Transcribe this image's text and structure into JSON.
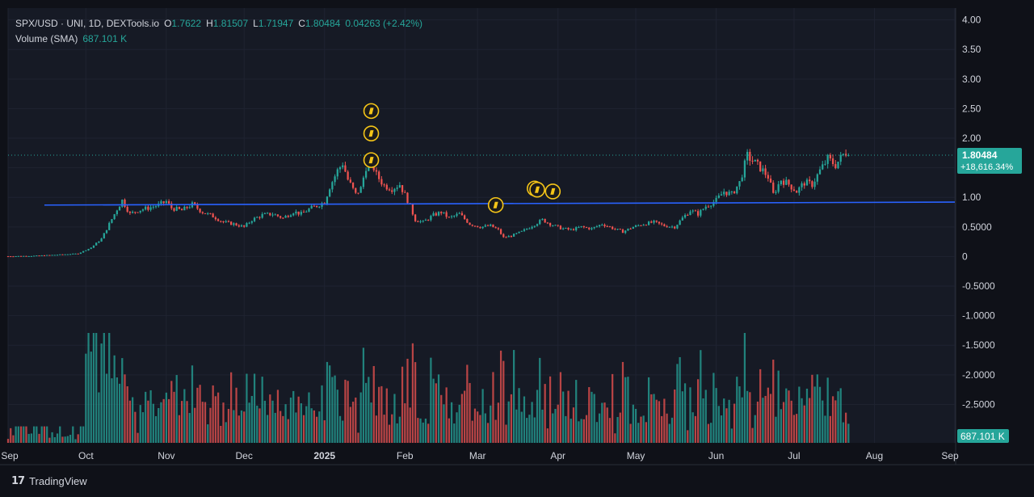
{
  "legend": {
    "symbol": "SPX/USD · UNI, 1D, DEXTools.io",
    "open_label": "O",
    "open": "1.7622",
    "high_label": "H",
    "high": "1.81507",
    "low_label": "L",
    "low": "1.71947",
    "close_label": "C",
    "close": "1.80484",
    "change": "0.04263 (+2.42%)",
    "volume_label": "Volume (SMA)",
    "volume_value": "687.101 K"
  },
  "price_badge": {
    "price": "1.80484",
    "change": "+18,616.34%"
  },
  "volume_badge": "687.101 K",
  "brand": {
    "mark": "17",
    "name": "TradingView"
  },
  "colors": {
    "up": "#26a69a",
    "down": "#ef5350",
    "level": "#2962ff",
    "badge": "#26a69a",
    "marker": "#f5c518",
    "bg": "#161a25",
    "grid": "#1f2331",
    "text": "#d1d4dc"
  },
  "chart_data": {
    "type": "candlestick",
    "y_ticks": [
      "4.00",
      "3.50",
      "3.00",
      "2.50",
      "2.00",
      "1.50",
      "1.00",
      "0.5000",
      "0",
      "-0.5000",
      "-1.0000",
      "-1.5000",
      "-2.0000",
      "-2.5000"
    ],
    "y_tick_values": [
      4.0,
      3.5,
      3.0,
      2.5,
      2.0,
      1.5,
      1.0,
      0.5,
      0,
      -0.5,
      -1.0,
      -1.5,
      -2.0,
      -2.5
    ],
    "ylim": [
      -3.15,
      4.2
    ],
    "x_ticks": [
      "Sep",
      "Oct",
      "Nov",
      "Dec",
      "2025",
      "Feb",
      "Mar",
      "Apr",
      "May",
      "Jun",
      "Jul",
      "Aug",
      "Sep"
    ],
    "x_tick_dates": [
      "2024-09-01",
      "2024-10-01",
      "2024-11-01",
      "2024-12-01",
      "2025-01-01",
      "2025-02-01",
      "2025-03-01",
      "2025-04-01",
      "2025-05-01",
      "2025-06-01",
      "2025-07-01",
      "2025-08-01",
      "2025-09-01"
    ],
    "xlim": [
      "2024-09-01",
      "2025-09-01"
    ],
    "horizontal_line": {
      "from": "2024-09-15",
      "price_start": 0.87,
      "price_end": 0.92
    },
    "series_close": [
      [
        "2024-09-01",
        0.005
      ],
      [
        "2024-09-10",
        0.01
      ],
      [
        "2024-09-20",
        0.03
      ],
      [
        "2024-09-28",
        0.05
      ],
      [
        "2024-10-03",
        0.15
      ],
      [
        "2024-10-07",
        0.3
      ],
      [
        "2024-10-10",
        0.55
      ],
      [
        "2024-10-13",
        0.8
      ],
      [
        "2024-10-15",
        0.95
      ],
      [
        "2024-10-18",
        0.72
      ],
      [
        "2024-10-21",
        0.78
      ],
      [
        "2024-10-25",
        0.82
      ],
      [
        "2024-10-29",
        0.87
      ],
      [
        "2024-11-01",
        0.93
      ],
      [
        "2024-11-03",
        0.82
      ],
      [
        "2024-11-07",
        0.78
      ],
      [
        "2024-11-11",
        0.88
      ],
      [
        "2024-11-15",
        0.75
      ],
      [
        "2024-11-19",
        0.68
      ],
      [
        "2024-11-23",
        0.58
      ],
      [
        "2024-11-27",
        0.55
      ],
      [
        "2024-12-01",
        0.5
      ],
      [
        "2024-12-04",
        0.62
      ],
      [
        "2024-12-08",
        0.7
      ],
      [
        "2024-12-12",
        0.72
      ],
      [
        "2024-12-16",
        0.65
      ],
      [
        "2024-12-20",
        0.76
      ],
      [
        "2024-12-23",
        0.72
      ],
      [
        "2024-12-26",
        0.8
      ],
      [
        "2024-12-29",
        0.86
      ],
      [
        "2025-01-01",
        0.92
      ],
      [
        "2025-01-03",
        1.18
      ],
      [
        "2025-01-06",
        1.45
      ],
      [
        "2025-01-08",
        1.58
      ],
      [
        "2025-01-10",
        1.3
      ],
      [
        "2025-01-13",
        1.05
      ],
      [
        "2025-01-15",
        1.15
      ],
      [
        "2025-01-17",
        1.52
      ],
      [
        "2025-01-19",
        1.62
      ],
      [
        "2025-01-21",
        1.38
      ],
      [
        "2025-01-24",
        1.2
      ],
      [
        "2025-01-27",
        1.15
      ],
      [
        "2025-01-30",
        1.22
      ],
      [
        "2025-02-02",
        0.95
      ],
      [
        "2025-02-05",
        0.62
      ],
      [
        "2025-02-08",
        0.58
      ],
      [
        "2025-02-12",
        0.7
      ],
      [
        "2025-02-15",
        0.75
      ],
      [
        "2025-02-18",
        0.65
      ],
      [
        "2025-02-22",
        0.72
      ],
      [
        "2025-02-26",
        0.55
      ],
      [
        "2025-03-02",
        0.5
      ],
      [
        "2025-03-06",
        0.52
      ],
      [
        "2025-03-09",
        0.45
      ],
      [
        "2025-03-11",
        0.32
      ],
      [
        "2025-03-14",
        0.35
      ],
      [
        "2025-03-18",
        0.42
      ],
      [
        "2025-03-22",
        0.52
      ],
      [
        "2025-03-26",
        0.62
      ],
      [
        "2025-03-29",
        0.55
      ],
      [
        "2025-04-02",
        0.48
      ],
      [
        "2025-04-06",
        0.45
      ],
      [
        "2025-04-10",
        0.5
      ],
      [
        "2025-04-14",
        0.47
      ],
      [
        "2025-04-18",
        0.55
      ],
      [
        "2025-04-22",
        0.48
      ],
      [
        "2025-04-26",
        0.42
      ],
      [
        "2025-04-30",
        0.5
      ],
      [
        "2025-05-04",
        0.55
      ],
      [
        "2025-05-08",
        0.58
      ],
      [
        "2025-05-12",
        0.52
      ],
      [
        "2025-05-16",
        0.5
      ],
      [
        "2025-05-19",
        0.65
      ],
      [
        "2025-05-22",
        0.78
      ],
      [
        "2025-05-25",
        0.72
      ],
      [
        "2025-05-28",
        0.85
      ],
      [
        "2025-06-01",
        0.95
      ],
      [
        "2025-06-04",
        1.1
      ],
      [
        "2025-06-07",
        1.05
      ],
      [
        "2025-06-10",
        1.25
      ],
      [
        "2025-06-13",
        1.7
      ],
      [
        "2025-06-15",
        1.62
      ],
      [
        "2025-06-18",
        1.5
      ],
      [
        "2025-06-21",
        1.35
      ],
      [
        "2025-06-23",
        1.05
      ],
      [
        "2025-06-26",
        1.3
      ],
      [
        "2025-06-29",
        1.22
      ],
      [
        "2025-07-02",
        1.1
      ],
      [
        "2025-07-05",
        1.25
      ],
      [
        "2025-07-08",
        1.22
      ],
      [
        "2025-07-11",
        1.45
      ],
      [
        "2025-07-14",
        1.65
      ],
      [
        "2025-07-17",
        1.55
      ],
      [
        "2025-07-20",
        1.72
      ],
      [
        "2025-07-22",
        1.8
      ]
    ],
    "volume_scale": "relative",
    "markers": [
      {
        "date": "2025-01-19",
        "price": 2.46
      },
      {
        "date": "2025-01-19",
        "price": 2.08
      },
      {
        "date": "2025-01-19",
        "price": 1.63
      },
      {
        "date": "2025-03-08",
        "price": 0.87
      },
      {
        "date": "2025-03-23",
        "price": 1.15
      },
      {
        "date": "2025-03-24",
        "price": 1.13
      },
      {
        "date": "2025-03-30",
        "price": 1.1
      }
    ]
  }
}
